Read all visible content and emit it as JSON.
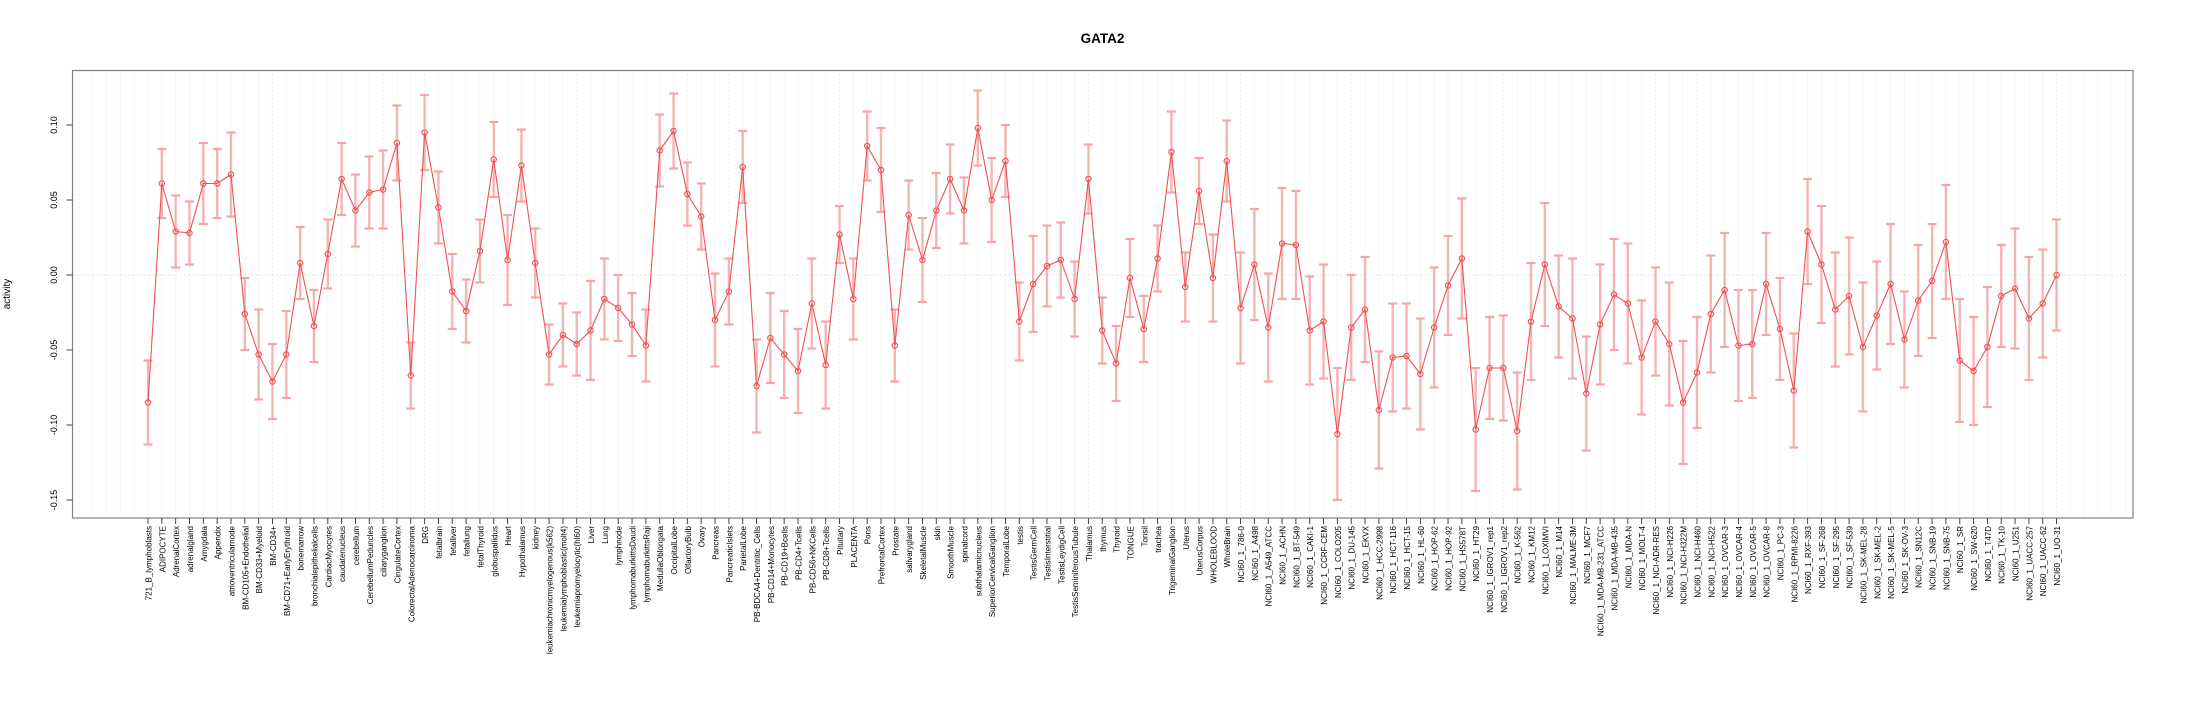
{
  "title": "GATA2",
  "chart_data": {
    "type": "line",
    "title": "GATA2",
    "xlabel": "",
    "ylabel": "activity",
    "ylim": [
      -0.162,
      0.137
    ],
    "yticks": [
      0.1,
      0.05,
      0.0,
      -0.05,
      -0.1,
      -0.15
    ],
    "ytick_labels": [
      "0.10",
      "0.05",
      "0.00",
      "-0.05",
      "-0.10",
      "-0.15"
    ],
    "grid": "vertical dotted gridline at every category; horizontal dotted line at y=0",
    "legend": "none",
    "marker": "open-circle",
    "error_bars": "symmetric, capped, light red",
    "line_style": "solid thin red connecting points",
    "categories": [
      "721_B_lymphoblasts",
      "ADIPOCYTE",
      "AdrenalCortex",
      "adrenalgland",
      "Amygdala",
      "Appendix",
      "atrioventricularnode",
      "BM-CD105+Endothelial",
      "BM-CD33+Myeloid",
      "BM-CD34+",
      "BM-CD71+EarlyErythroid",
      "bonemarrow",
      "bronchialepithelialcells",
      "CardiacMyocytes",
      "caudatenucleus",
      "cerebellum",
      "CerebellumPeduncles",
      "ciliaryganglion",
      "CingulateCortex",
      "ColorectalAdenocarcinoma",
      "DRG",
      "fetalbrain",
      "fetalliver",
      "fetallung",
      "fetalThyroid",
      "globuspallidus",
      "Heart",
      "Hypothalamus",
      "kidney",
      "leukemiachronicmyelogenous(k562)",
      "leukemialymphoblastic(molt4)",
      "leukemiapromyelocytic(hl60)",
      "Liver",
      "Lung",
      "lymphnode",
      "lymphomaburkittsDaudi",
      "lymphomaburkittsRaji",
      "MedullaOblongata",
      "OccipitalLobe",
      "OlfactoryBulb",
      "Ovary",
      "Pancreas",
      "PancreaticIslets",
      "ParietalLobe",
      "PB-BDCA4+Dentritic_Cells",
      "PB-CD14+Monocytes",
      "PB-CD19+Bcells",
      "PB-CD4+Tcells",
      "PB-CD56+NKCells",
      "PB-CD8+Tcells",
      "Pituitary",
      "PLACENTA",
      "Pons",
      "PrefrontalCortex",
      "Prostate",
      "salivarygland",
      "SkeletalMuscle",
      "skin",
      "SmoothMuscle",
      "spinalcord",
      "subthalamicnucleus",
      "SuperiorCervicalGanglion",
      "TemporalLobe",
      "testis",
      "TestisGermCell",
      "TestisInterstitial",
      "TestisLeydigCell",
      "TestisSeminiferousTubule",
      "Thalamus",
      "thymus",
      "Thyroid",
      "TONGUE",
      "Tonsil",
      "trachea",
      "TrigeminalGanglion",
      "Uterus",
      "UterusCorpus",
      "WHOLEBLOOD",
      "WholeBrain",
      "NCI60_1_786-0",
      "NCI60_1_A498",
      "NCI60_1_A549_ATCC",
      "NCI60_1_ACHN",
      "NCI60_1_BT-549",
      "NCI60_1_CAKI-1",
      "NCI60_1_CCRF-CEM",
      "NCI60_1_COLO205",
      "NCI60_1_DU-145",
      "NCI60_1_EKVX",
      "NCI60_1_HCC-2998",
      "NCI60_1_HCT-116",
      "NCI60_1_HCT-15",
      "NCI60_1_HL-60",
      "NCI60_1_HOP-62",
      "NCI60_1_HOP-92",
      "NCI60_1_HS578T",
      "NCI60_1_HT29",
      "NCI60_1_IGROV1_rep1",
      "NCI60_1_IGROV1_rep2",
      "NCI60_1_K-562",
      "NCI60_1_KM12",
      "NCI60_1_LOXIMVI",
      "NCI60_1_M14",
      "NCI60_1_MALME-3M",
      "NCI60_1_MCF7",
      "NCI60_1_MDA-MB-231_ATCC",
      "NCI60_1_MDA-MB-435",
      "NCI60_1_MDA-N",
      "NCI60_1_MOLT-4",
      "NCI60_1_NCI-ADR-RES",
      "NCI60_1_NCI-H226",
      "NCI60_1_NCI-H322M",
      "NCI60_1_NCI-H460",
      "NCI60_1_NCI-H522",
      "NCI60_1_OVCAR-3",
      "NCI60_1_OVCAR-4",
      "NCI60_1_OVCAR-5",
      "NCI60_1_OVCAR-8",
      "NCI60_1_PC-3",
      "NCI60_1_RPMI-8226",
      "NCI60_1_RXF-393",
      "NCI60_1_SF-268",
      "NCI60_1_SF-295",
      "NCI60_1_SF-539",
      "NCI60_1_SK-MEL-28",
      "NCI60_1_SK-MEL-2",
      "NCI60_1_SK-MEL-5",
      "NCI60_1_SK-OV-3",
      "NCI60_1_SN12C",
      "NCI60_1_SNB-19",
      "NCI60_1_SNB-75",
      "NCI60_1_SR",
      "NCI60_1_SW-620",
      "NCI60_1_T47D",
      "NCI60_1_TK-10",
      "NCI60_1_U251",
      "NCI60_1_UACC-257",
      "NCI60_1_UACC-62",
      "NCI60_1_UO-31"
    ],
    "series": [
      {
        "name": "activity",
        "values": [
          -0.085,
          0.061,
          0.029,
          0.028,
          0.061,
          0.061,
          0.067,
          -0.026,
          -0.053,
          -0.071,
          -0.053,
          0.008,
          -0.034,
          0.014,
          0.064,
          0.043,
          0.055,
          0.057,
          0.088,
          -0.067,
          0.095,
          0.045,
          -0.011,
          -0.024,
          0.016,
          0.077,
          0.01,
          0.073,
          0.008,
          -0.053,
          -0.04,
          -0.046,
          -0.037,
          -0.016,
          -0.022,
          -0.033,
          -0.047,
          0.083,
          0.096,
          0.054,
          0.039,
          -0.03,
          -0.011,
          0.072,
          -0.074,
          -0.042,
          -0.053,
          -0.064,
          -0.019,
          -0.06,
          0.027,
          -0.016,
          0.086,
          0.07,
          -0.047,
          0.04,
          0.01,
          0.043,
          0.064,
          0.043,
          0.098,
          0.05,
          0.076,
          -0.031,
          -0.006,
          0.006,
          0.01,
          -0.016,
          0.064,
          -0.037,
          -0.059,
          -0.002,
          -0.036,
          0.011,
          0.082,
          -0.008,
          0.056,
          -0.002,
          0.076,
          -0.022,
          0.007,
          -0.035,
          0.021,
          0.02,
          -0.037,
          -0.031,
          -0.106,
          -0.035,
          -0.023,
          -0.09,
          -0.055,
          -0.054,
          -0.066,
          -0.035,
          -0.007,
          0.011,
          -0.103,
          -0.062,
          -0.062,
          -0.104,
          -0.031,
          0.007,
          -0.021,
          -0.029,
          -0.079,
          -0.033,
          -0.013,
          -0.019,
          -0.055,
          -0.031,
          -0.046,
          -0.085,
          -0.065,
          -0.026,
          -0.01,
          -0.047,
          -0.046,
          -0.006,
          -0.036,
          -0.077,
          0.029,
          0.007,
          -0.023,
          -0.014,
          -0.048,
          -0.027,
          -0.006,
          -0.043,
          -0.017,
          -0.004,
          0.022,
          -0.057,
          -0.064,
          -0.048,
          -0.014,
          -0.009,
          -0.029,
          -0.019,
          0.0
        ],
        "errors": [
          0.028,
          0.023,
          0.024,
          0.021,
          0.027,
          0.023,
          0.028,
          0.024,
          0.03,
          0.025,
          0.029,
          0.024,
          0.024,
          0.023,
          0.024,
          0.024,
          0.024,
          0.026,
          0.025,
          0.022,
          0.025,
          0.024,
          0.025,
          0.021,
          0.021,
          0.025,
          0.03,
          0.024,
          0.023,
          0.02,
          0.021,
          0.021,
          0.033,
          0.027,
          0.022,
          0.021,
          0.024,
          0.024,
          0.025,
          0.021,
          0.022,
          0.031,
          0.022,
          0.024,
          0.031,
          0.03,
          0.029,
          0.028,
          0.03,
          0.029,
          0.019,
          0.027,
          0.023,
          0.028,
          0.024,
          0.023,
          0.028,
          0.025,
          0.023,
          0.022,
          0.025,
          0.028,
          0.024,
          0.026,
          0.032,
          0.027,
          0.025,
          0.025,
          0.023,
          0.022,
          0.025,
          0.026,
          0.022,
          0.022,
          0.027,
          0.023,
          0.022,
          0.029,
          0.027,
          0.037,
          0.037,
          0.036,
          0.037,
          0.036,
          0.036,
          0.038,
          0.044,
          0.035,
          0.035,
          0.039,
          0.036,
          0.035,
          0.037,
          0.04,
          0.033,
          0.04,
          0.041,
          0.034,
          0.035,
          0.039,
          0.039,
          0.041,
          0.034,
          0.04,
          0.038,
          0.04,
          0.037,
          0.04,
          0.038,
          0.036,
          0.041,
          0.041,
          0.037,
          0.039,
          0.038,
          0.037,
          0.036,
          0.034,
          0.034,
          0.038,
          0.035,
          0.039,
          0.038,
          0.039,
          0.043,
          0.036,
          0.04,
          0.032,
          0.037,
          0.038,
          0.038,
          0.041,
          0.036,
          0.04,
          0.034,
          0.04,
          0.041,
          0.036,
          0.037
        ]
      }
    ]
  },
  "colors": {
    "series_line": "#f05151",
    "marker_stroke": "#f05151",
    "error_bar": "#f5a3a3",
    "gridline": "#dedede",
    "zero_line": "#d0d0d0",
    "plot_border": "#808080",
    "tick": "#444444",
    "text": "#000000",
    "background": "#ffffff"
  }
}
